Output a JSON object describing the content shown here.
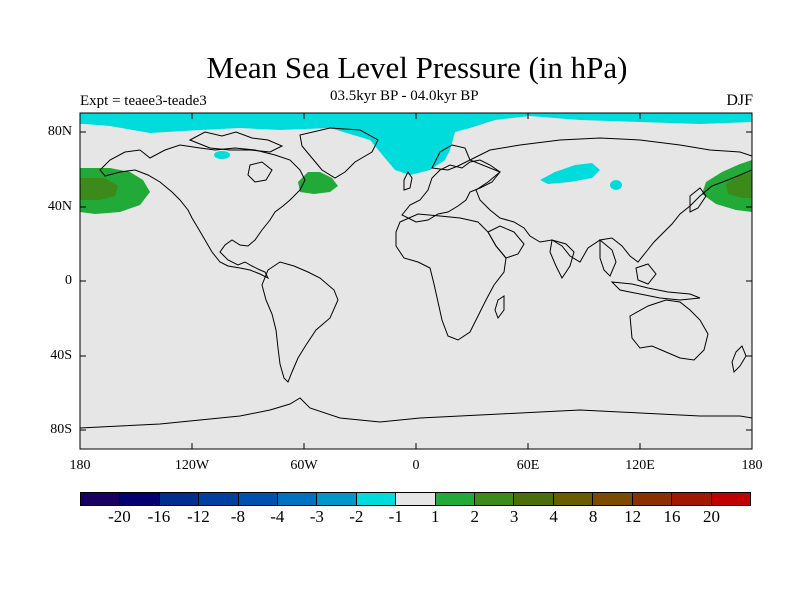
{
  "title": "Mean Sea Level Pressure (in hPa)",
  "expt_label": "Expt = teaee3-teade3",
  "period_label": "03.5kyr BP - 04.0kyr BP",
  "season_label": "DJF",
  "lat_labels": [
    "80N",
    "40N",
    "0",
    "40S",
    "80S"
  ],
  "lon_labels": [
    "180",
    "120W",
    "60W",
    "0",
    "60E",
    "120E",
    "180"
  ],
  "colors": {
    "background": "#e6e6e6",
    "neg_1_to_2": "#00dcdc",
    "pos_1_to_2": "#21aa37",
    "pos_2_to_3": "#3c8a1a"
  },
  "colorbar": {
    "colors": [
      "#1a0060",
      "#050070",
      "#002f90",
      "#0040a0",
      "#0050b0",
      "#0070c0",
      "#0096cc",
      "#00dcdc",
      "#e6e6e6",
      "#21aa37",
      "#3c8a1a",
      "#4a6e0c",
      "#6a5c00",
      "#7c4a00",
      "#8c3000",
      "#a01800",
      "#c00000"
    ],
    "labels": [
      "-20",
      "-16",
      "-12",
      "-8",
      "-4",
      "-3",
      "-2",
      "-1",
      "1",
      "2",
      "3",
      "4",
      "8",
      "12",
      "16",
      "20"
    ]
  }
}
